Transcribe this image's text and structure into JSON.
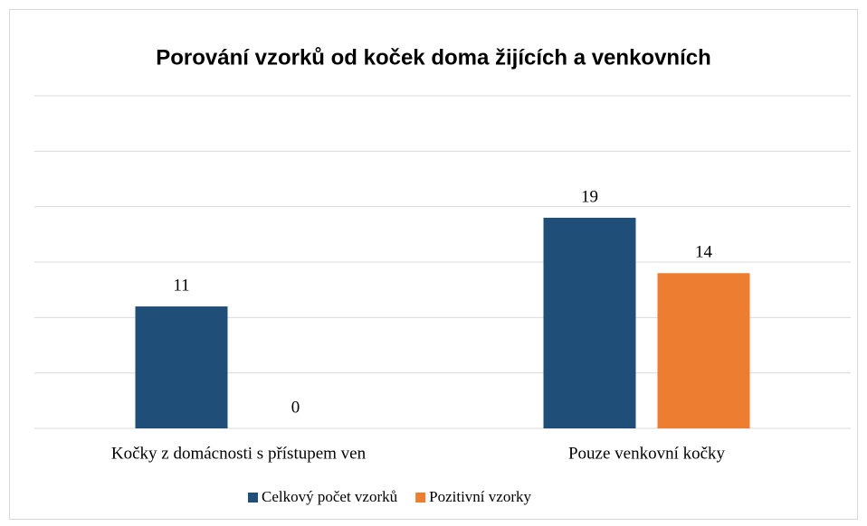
{
  "chart_data": {
    "type": "bar",
    "title": "Porování vzorků od koček doma žijících a venkovních",
    "categories": [
      "Kočky z domácnosti s přístupem ven",
      "Pouze venkovní kočky"
    ],
    "series": [
      {
        "name": "Celkový počet vzorků",
        "color": "#1f4e79",
        "values": [
          11,
          19
        ]
      },
      {
        "name": "Pozitivní vzorky",
        "color": "#ed7d31",
        "values": [
          0,
          14
        ]
      }
    ],
    "ylim": [
      0,
      30
    ],
    "yticks": [
      0,
      5,
      10,
      15,
      20,
      25,
      30
    ],
    "grid": true,
    "legend": "bottom"
  }
}
